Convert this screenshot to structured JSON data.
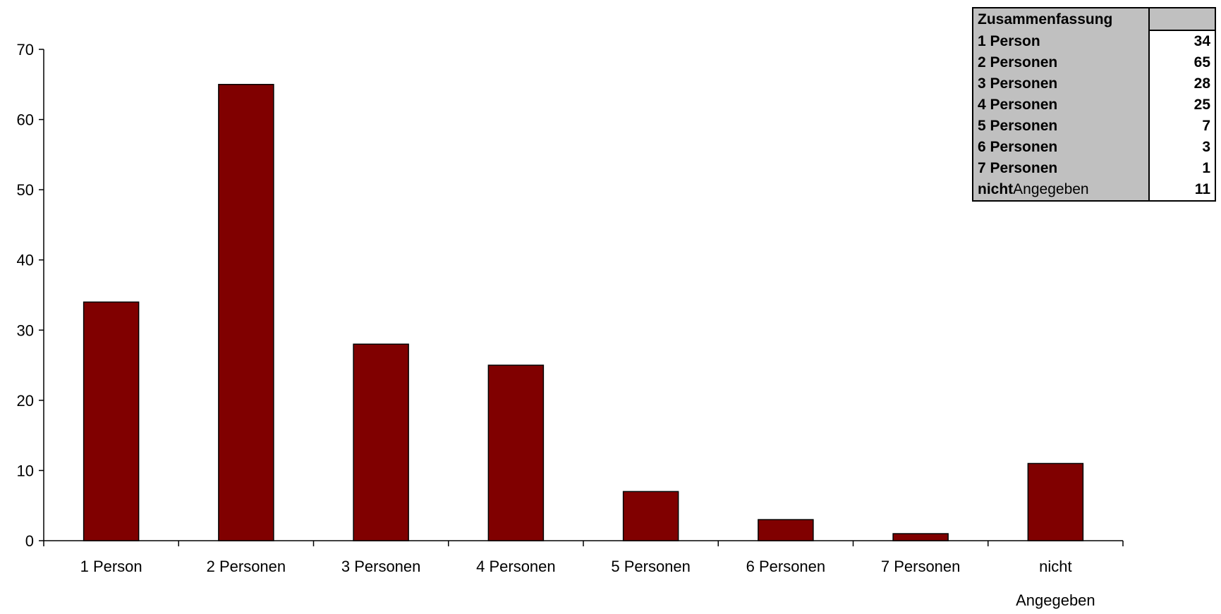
{
  "chart_data": {
    "type": "bar",
    "categories": [
      "1 Person",
      "2 Personen",
      "3 Personen",
      "4 Personen",
      "5 Personen",
      "6 Personen",
      "7 Personen",
      "nicht Angegeben"
    ],
    "category_lines": [
      [
        "1 Person"
      ],
      [
        "2 Personen"
      ],
      [
        "3 Personen"
      ],
      [
        "4 Personen"
      ],
      [
        "5 Personen"
      ],
      [
        "6 Personen"
      ],
      [
        "7 Personen"
      ],
      [
        "nicht",
        "Angegeben"
      ]
    ],
    "values": [
      34,
      65,
      28,
      25,
      7,
      3,
      1,
      11
    ],
    "ylim": [
      0,
      70
    ],
    "yticks": [
      0,
      10,
      20,
      30,
      40,
      50,
      60,
      70
    ],
    "bar_color": "#800000",
    "grid": false,
    "title": "",
    "xlabel": "",
    "ylabel": ""
  },
  "summary_table": {
    "header": "Zusammenfassung",
    "rows": [
      {
        "label": "1 Person",
        "value": "34"
      },
      {
        "label": "2 Personen",
        "value": "65"
      },
      {
        "label": "3 Personen",
        "value": "28"
      },
      {
        "label": "4 Personen",
        "value": "25"
      },
      {
        "label": "5 Personen",
        "value": "7"
      },
      {
        "label": "6 Personen",
        "value": "3"
      },
      {
        "label": "7 Personen",
        "value": "1"
      }
    ],
    "last_row": {
      "label_prefix": "nicht",
      "label_suffix": "Angegeben",
      "value": "11"
    }
  }
}
